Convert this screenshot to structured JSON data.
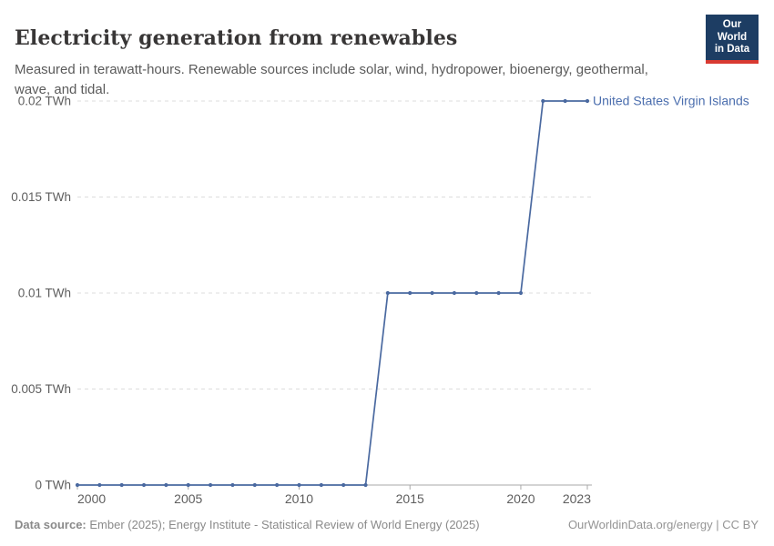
{
  "header": {
    "title": "Electricity generation from renewables",
    "subtitle": "Measured in terawatt-hours. Renewable sources include solar, wind, hydropower, bioenergy, geothermal, wave, and tidal.",
    "logo": {
      "line1": "Our World",
      "line2": "in Data",
      "bg_color": "#1d3d63",
      "bar_color": "#d93a32"
    }
  },
  "chart_data": {
    "type": "line",
    "title": "Electricity generation from renewables",
    "unit": "TWh",
    "x_range": [
      2000,
      2023
    ],
    "y_range": [
      0,
      0.02
    ],
    "grid": "dashed-horizontal",
    "legend_position": "end-of-line-label",
    "x_ticks": [
      2000,
      2005,
      2010,
      2015,
      2020,
      2023
    ],
    "y_ticks": [
      {
        "value": 0,
        "label": "0 TWh"
      },
      {
        "value": 0.005,
        "label": "0.005 TWh"
      },
      {
        "value": 0.01,
        "label": "0.01 TWh"
      },
      {
        "value": 0.015,
        "label": "0.015 TWh"
      },
      {
        "value": 0.02,
        "label": "0.02 TWh"
      }
    ],
    "colors": {
      "grid": "#dddddd",
      "axis": "#a8a8a8"
    },
    "series": [
      {
        "name": "United States Virgin Islands",
        "color": "#4a69a0",
        "label_color": "#4b6eae",
        "x": [
          2000,
          2001,
          2002,
          2003,
          2004,
          2005,
          2006,
          2007,
          2008,
          2009,
          2010,
          2011,
          2012,
          2013,
          2014,
          2015,
          2016,
          2017,
          2018,
          2019,
          2020,
          2021,
          2022,
          2023
        ],
        "values": [
          0,
          0,
          0,
          0,
          0,
          0,
          0,
          0,
          0,
          0,
          0,
          0,
          0,
          0,
          0.01,
          0.01,
          0.01,
          0.01,
          0.01,
          0.01,
          0.01,
          0.02,
          0.02,
          0.02
        ]
      }
    ]
  },
  "footer": {
    "source_label": "Data source:",
    "source_text": " Ember (2025); Energy Institute - Statistical Review of World Energy (2025)",
    "credit": "OurWorldinData.org/energy | CC BY"
  }
}
